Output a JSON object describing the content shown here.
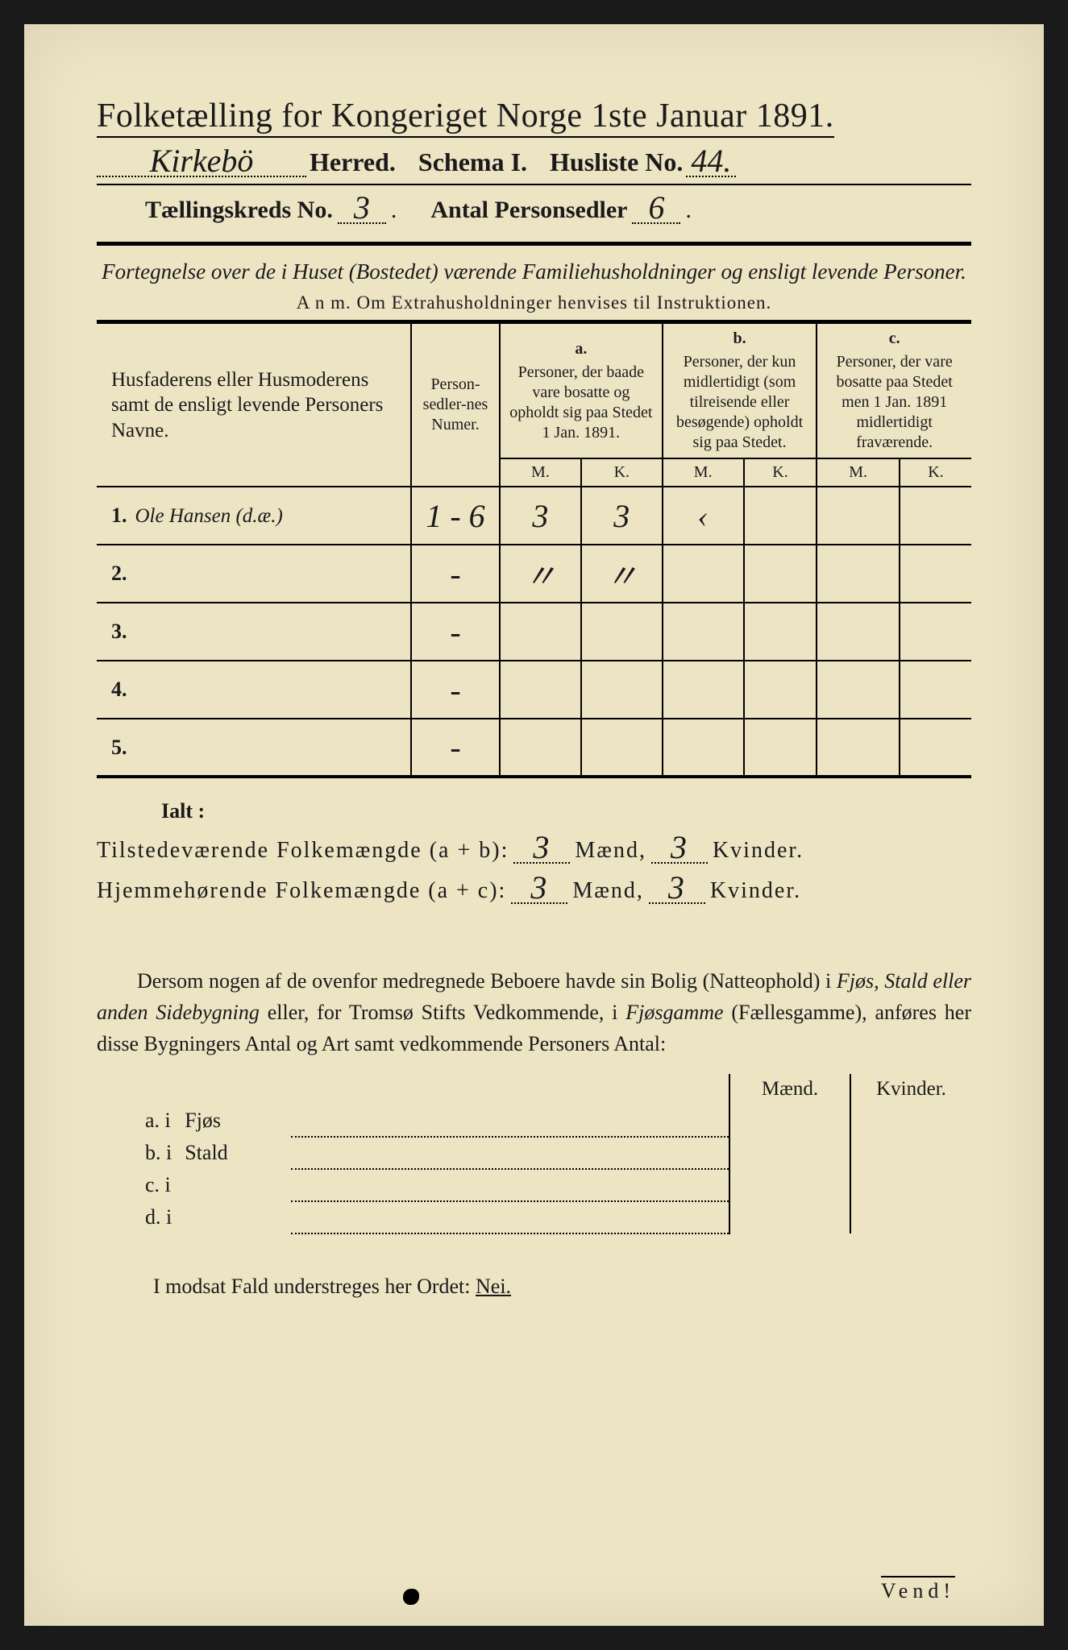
{
  "colors": {
    "paper": "#ede4c4",
    "ink": "#1a1a1a",
    "frame": "#1a1a1a"
  },
  "header": {
    "title": "Folketælling for Kongeriget Norge 1ste Januar 1891.",
    "herred_handwritten": "Kirkebö",
    "herred_label": "Herred.",
    "schema_label": "Schema I.",
    "husliste_label": "Husliste No.",
    "husliste_no": "44.",
    "kreds_label": "Tællingskreds No.",
    "kreds_no": "3",
    "personsedler_label": "Antal Personsedler",
    "personsedler_no": "6"
  },
  "subheading": {
    "line": "Fortegnelse over de i Huset (Bostedet) værende Familiehusholdninger og ensligt levende Personer.",
    "anm": "A n m.  Om Extrahusholdninger henvises til Instruktionen."
  },
  "table": {
    "col_name_header": "Husfaderens eller Husmoderens samt de ensligt levende Personers Navne.",
    "col_numer_header": "Person-sedler-nes Numer.",
    "col_a": {
      "letter": "a.",
      "text": "Personer, der baade vare bosatte og opholdt sig paa Stedet 1 Jan. 1891."
    },
    "col_b": {
      "letter": "b.",
      "text": "Personer, der kun midlertidigt (som tilreisende eller besøgende) opholdt sig paa Stedet."
    },
    "col_c": {
      "letter": "c.",
      "text": "Personer, der vare bosatte paa Stedet men 1 Jan. 1891 midlertidigt fraværende."
    },
    "mk": {
      "m": "M.",
      "k": "K."
    },
    "rows": [
      {
        "num": "1.",
        "name": "Ole Hansen (d.æ.)",
        "numer": "1 - 6",
        "a_m": "3",
        "a_k": "3",
        "b_m": "‹",
        "b_k": "",
        "c_m": "",
        "c_k": ""
      },
      {
        "num": "2.",
        "name": "",
        "numer": "-",
        "a_m": "〃",
        "a_k": "〃",
        "b_m": "",
        "b_k": "",
        "c_m": "",
        "c_k": ""
      },
      {
        "num": "3.",
        "name": "",
        "numer": "-",
        "a_m": "",
        "a_k": "",
        "b_m": "",
        "b_k": "",
        "c_m": "",
        "c_k": ""
      },
      {
        "num": "4.",
        "name": "",
        "numer": "-",
        "a_m": "",
        "a_k": "",
        "b_m": "",
        "b_k": "",
        "c_m": "",
        "c_k": ""
      },
      {
        "num": "5.",
        "name": "",
        "numer": "-",
        "a_m": "",
        "a_k": "",
        "b_m": "",
        "b_k": "",
        "c_m": "",
        "c_k": ""
      }
    ]
  },
  "totals": {
    "ialt": "Ialt :",
    "tilstede_label": "Tilstedeværende Folkemængde (a + b):",
    "hjemme_label": "Hjemmehørende Folkemængde (a + c):",
    "maend": "Mænd,",
    "kvinder": "Kvinder.",
    "tilstede_m": "3",
    "tilstede_k": "3",
    "hjemme_m": "3",
    "hjemme_k": "3"
  },
  "paragraph": {
    "text_parts": [
      "Dersom nogen af de ovenfor medregnede Beboere havde sin Bolig (Natteophold) i ",
      "Fjøs, Stald eller anden Sidebygning",
      " eller, for Tromsø Stifts Vedkommende, i ",
      "Fjøsgamme",
      " (Fællesgamme), anføres her disse Bygningers Antal og Art samt vedkommende Personers Antal:"
    ]
  },
  "outbuildings": {
    "maend": "Mænd.",
    "kvinder": "Kvinder.",
    "rows": [
      {
        "label": "a.  i",
        "name": "Fjøs"
      },
      {
        "label": "b.  i",
        "name": "Stald"
      },
      {
        "label": "c.  i",
        "name": ""
      },
      {
        "label": "d.  i",
        "name": ""
      }
    ]
  },
  "footer": {
    "line": "I modsat Fald understreges her Ordet:",
    "nei": "Nei.",
    "vend": "Vend!"
  }
}
